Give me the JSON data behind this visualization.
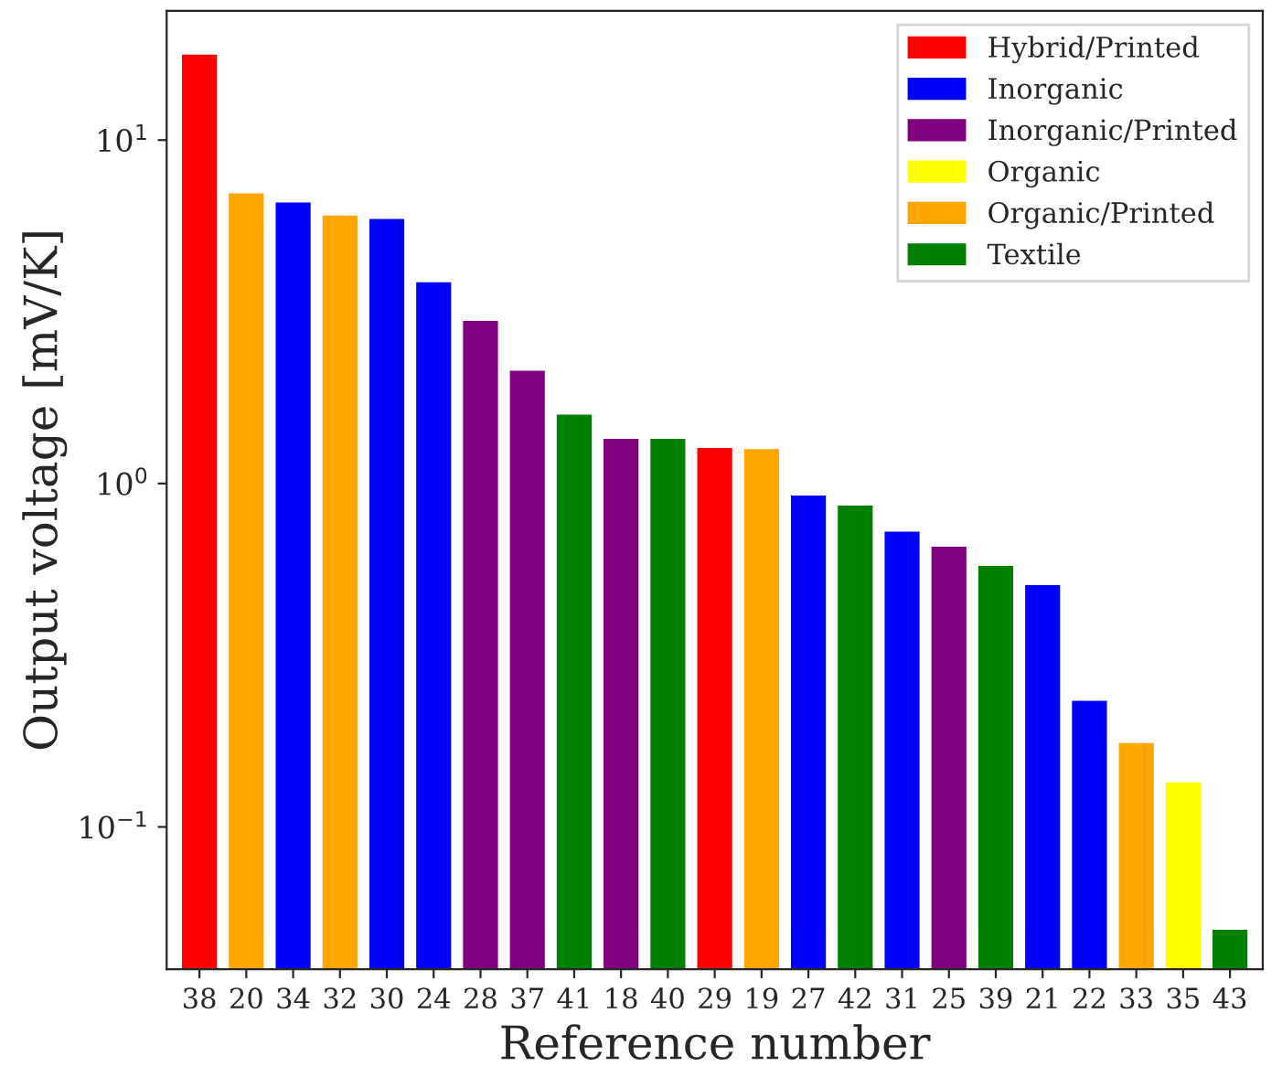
{
  "chart_data": {
    "type": "bar",
    "xlabel": "Reference number",
    "ylabel": "Output voltage [mV/K]",
    "categories": [
      "38",
      "20",
      "34",
      "32",
      "30",
      "24",
      "28",
      "37",
      "41",
      "18",
      "40",
      "29",
      "19",
      "27",
      "42",
      "31",
      "25",
      "39",
      "21",
      "22",
      "33",
      "35",
      "43"
    ],
    "series": [
      {
        "name": "Hybrid/Printed",
        "color": "#ff0000",
        "values": [
          17.9,
          null,
          null,
          null,
          null,
          null,
          null,
          null,
          null,
          null,
          null,
          1.28,
          null,
          null,
          null,
          null,
          null,
          null,
          null,
          null,
          null,
          null,
          null
        ]
      },
      {
        "name": "Inorganic",
        "color": "#0000ff",
        "values": [
          null,
          null,
          6.64,
          null,
          5.94,
          3.89,
          null,
          null,
          null,
          null,
          null,
          null,
          null,
          0.93,
          null,
          0.73,
          null,
          null,
          0.51,
          0.235,
          null,
          null,
          null
        ]
      },
      {
        "name": "Inorganic/Printed",
        "color": "#800080",
        "values": [
          null,
          null,
          null,
          null,
          null,
          null,
          3.0,
          2.15,
          null,
          1.36,
          null,
          null,
          null,
          null,
          null,
          null,
          0.66,
          null,
          null,
          null,
          null,
          null,
          null
        ]
      },
      {
        "name": "Organic",
        "color": "#ffff00",
        "values": [
          null,
          null,
          null,
          null,
          null,
          null,
          null,
          null,
          null,
          null,
          null,
          null,
          null,
          null,
          null,
          null,
          null,
          null,
          null,
          null,
          null,
          0.136,
          null
        ]
      },
      {
        "name": "Organic/Printed",
        "color": "#ffa500",
        "values": [
          null,
          7.06,
          null,
          6.08,
          null,
          null,
          null,
          null,
          null,
          null,
          null,
          null,
          1.27,
          null,
          null,
          null,
          null,
          null,
          null,
          null,
          0.177,
          null,
          null
        ]
      },
      {
        "name": "Textile",
        "color": "#008000",
        "values": [
          null,
          null,
          null,
          null,
          null,
          null,
          null,
          null,
          1.6,
          null,
          1.36,
          null,
          null,
          null,
          0.87,
          null,
          null,
          0.58,
          null,
          null,
          null,
          null,
          0.0506
        ]
      }
    ],
    "log": "y",
    "ylim": [
      0.0385,
      23.8
    ],
    "yticks": [
      {
        "value": 0.1,
        "label": "10$^{−1}$"
      },
      {
        "value": 1,
        "label": "10$^{0}$"
      },
      {
        "value": 10,
        "label": "10$^{1}$"
      }
    ],
    "legend": "top right",
    "grid": false
  }
}
